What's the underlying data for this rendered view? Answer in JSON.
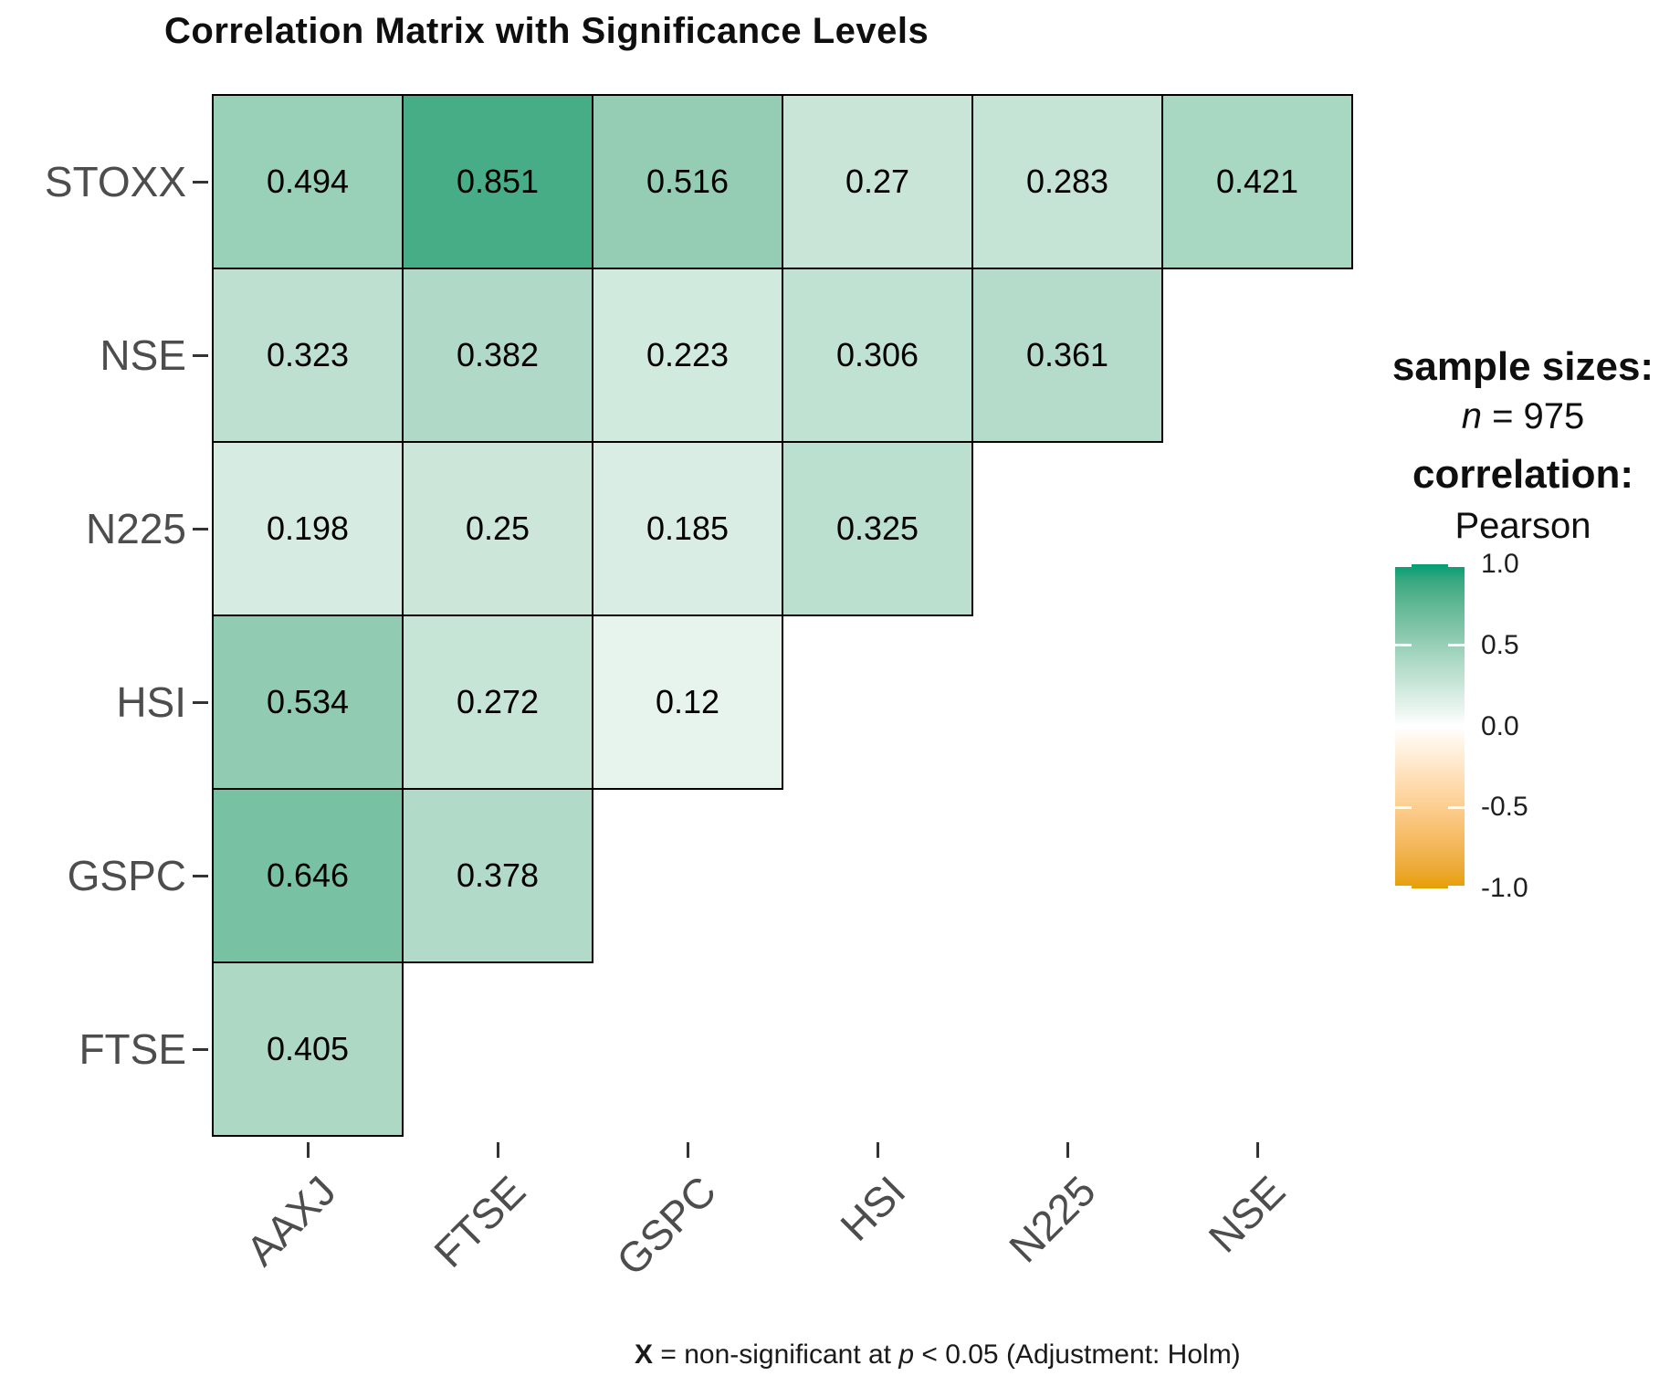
{
  "title": "Correlation Matrix with Significance Levels",
  "legend": {
    "sample_sizes_label": "sample sizes:",
    "n_label": "n",
    "n_value": " = 975",
    "correlation_label": "correlation:",
    "method": "Pearson",
    "colorbar_ticks": [
      {
        "label": "1.0",
        "value": 1.0
      },
      {
        "label": "0.5",
        "value": 0.5
      },
      {
        "label": "0.0",
        "value": 0.0
      },
      {
        "label": "-0.5",
        "value": -0.5
      },
      {
        "label": "-1.0",
        "value": -1.0
      }
    ]
  },
  "caption": {
    "x_symbol": "X",
    "part1": " = non-significant at ",
    "p_symbol": "p",
    "part2": " < 0.05 (Adjustment: Holm)"
  },
  "chart_data": {
    "type": "heatmap",
    "subtype": "lower-triangle-correlation-matrix",
    "rows": [
      "STOXX",
      "NSE",
      "N225",
      "HSI",
      "GSPC",
      "FTSE"
    ],
    "columns": [
      "AAXJ",
      "FTSE",
      "GSPC",
      "HSI",
      "N225",
      "NSE"
    ],
    "values": [
      [
        0.494,
        0.851,
        0.516,
        0.27,
        0.283,
        0.421
      ],
      [
        0.323,
        0.382,
        0.223,
        0.306,
        0.361,
        null
      ],
      [
        0.198,
        0.25,
        0.185,
        0.325,
        null,
        null
      ],
      [
        0.534,
        0.272,
        0.12,
        null,
        null,
        null
      ],
      [
        0.646,
        0.378,
        null,
        null,
        null,
        null
      ],
      [
        0.405,
        null,
        null,
        null,
        null,
        null
      ]
    ],
    "correlation_method": "Pearson",
    "sample_size": 975,
    "color_scale": {
      "low": "#E69F00",
      "mid": "#FFFFFF",
      "high": "#009E73",
      "limits": [
        -1,
        1
      ]
    },
    "legend_position": "right",
    "grid_border_color": "#000000",
    "axis_text_color": "#4d4d4d"
  }
}
